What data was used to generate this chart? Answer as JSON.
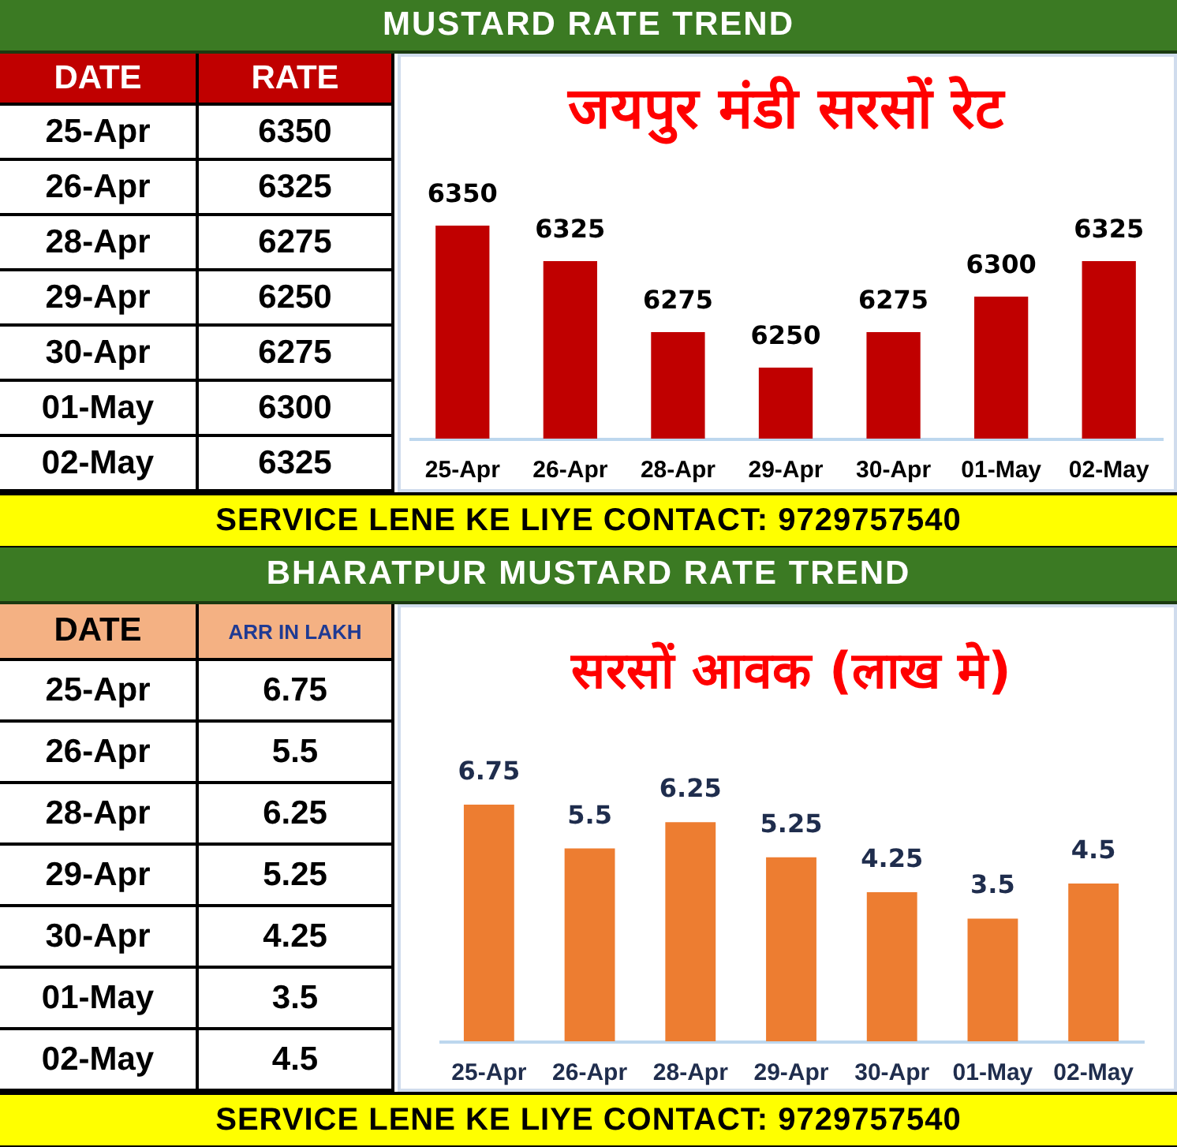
{
  "chart_data": [
    {
      "type": "bar",
      "title": "जयपुर मंडी सरसों रेट",
      "categories": [
        "25-Apr",
        "26-Apr",
        "28-Apr",
        "29-Apr",
        "30-Apr",
        "01-May",
        "02-May"
      ],
      "values": [
        6350,
        6325,
        6275,
        6250,
        6275,
        6300,
        6325
      ],
      "value_labels": [
        "6350",
        "6325",
        "6275",
        "6250",
        "6275",
        "6300",
        "6325"
      ],
      "color": "#c00000",
      "ylim": [
        6200,
        6350
      ],
      "tick_labels": "x",
      "annotations": [
        "MUSTARD RATE TREND",
        "DATE",
        "RATE",
        "SERVICE LENE KE LIYE CONTACT: 9729757540"
      ]
    },
    {
      "type": "bar",
      "title": "सरसों आवक (लाख मे)",
      "categories": [
        "25-Apr",
        "26-Apr",
        "28-Apr",
        "29-Apr",
        "30-Apr",
        "01-May",
        "02-May"
      ],
      "values": [
        6.75,
        5.5,
        6.25,
        5.25,
        4.25,
        3.5,
        4.5
      ],
      "value_labels": [
        "6.75",
        "5.5",
        "6.25",
        "5.25",
        "4.25",
        "3.5",
        "4.5"
      ],
      "color": "#ed7d31",
      "tick_labels": "x",
      "annotations": [
        "BHARATPUR MUSTARD RATE TREND",
        "DATE",
        "ARR IN LAKH",
        "SERVICE LENE KE LIYE CONTACT: 9729757540"
      ]
    }
  ]
}
